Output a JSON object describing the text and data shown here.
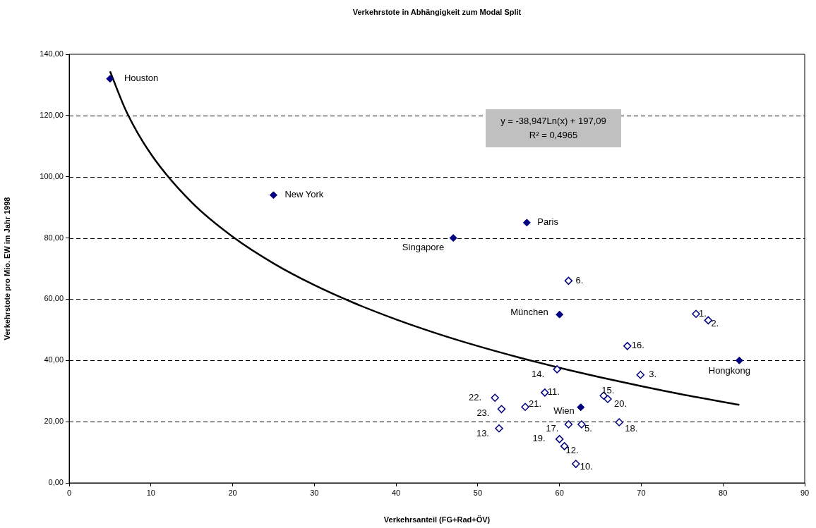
{
  "chart_data": {
    "type": "scatter",
    "title": "Verkehrstote in Abhängigkeit zum Modal Split",
    "xlabel": "Verkehrsanteil (FG+Rad+ÖV)",
    "ylabel": "Verkehrstote pro Mio. EW im Jahr 1998",
    "xlim": [
      0,
      90
    ],
    "xticks": [
      0,
      10,
      20,
      30,
      40,
      50,
      60,
      70,
      80,
      90
    ],
    "ylim": [
      0,
      140
    ],
    "yticks": [
      {
        "value": 0,
        "label": "0,00"
      },
      {
        "value": 20,
        "label": "20,00"
      },
      {
        "value": 40,
        "label": "40,00"
      },
      {
        "value": 60,
        "label": "60,00"
      },
      {
        "value": 80,
        "label": "80,00"
      },
      {
        "value": 100,
        "label": "100,00"
      },
      {
        "value": 120,
        "label": "120,00"
      },
      {
        "value": 140,
        "label": "140,00"
      }
    ],
    "grid": "y",
    "legend": false,
    "marker": "diamond",
    "series": [
      {
        "color": "#000080",
        "x": [
          5,
          25,
          47,
          56,
          60,
          62.6,
          82
        ],
        "values": [
          132,
          94,
          80,
          85,
          55,
          24.7,
          40
        ]
      },
      {
        "color": "#000080",
        "x": [
          76.7,
          78.2,
          69.9,
          62.7,
          61.1,
          62,
          58.2,
          60.6,
          52.6,
          59.7,
          65.4,
          68.3,
          61.1,
          67.3,
          60,
          65.9,
          55.8,
          52.1,
          52.9
        ],
        "values": [
          55.2,
          53.1,
          35.3,
          19.1,
          66,
          6.2,
          29.5,
          12,
          17.8,
          37.1,
          28.5,
          44.7,
          19.1,
          19.8,
          14.3,
          27.4,
          24.8,
          27.8,
          24.1
        ]
      },
      {
        "type": "line",
        "color": "#000000",
        "marker": "none",
        "line_style": "solid",
        "x": [
          5,
          7,
          10,
          15,
          20,
          25,
          30,
          35,
          40,
          45,
          50,
          55,
          60,
          65,
          70,
          75,
          82
        ],
        "values": [
          134.4,
          121.3,
          107.4,
          91.6,
          80.4,
          71.7,
          64.6,
          58.6,
          53.4,
          48.8,
          44.7,
          41.0,
          37.6,
          34.5,
          31.6,
          28.9,
          25.5
        ]
      }
    ],
    "annotations": [
      {
        "text": "Houston",
        "x": 5,
        "y": 132
      },
      {
        "text": "New York",
        "x": 25,
        "y": 94
      },
      {
        "text": "Singapore",
        "x": 47,
        "y": 80
      },
      {
        "text": "Paris",
        "x": 56,
        "y": 85
      },
      {
        "text": "München",
        "x": 60,
        "y": 55
      },
      {
        "text": "Wien",
        "x": 62.6,
        "y": 24.7
      },
      {
        "text": "Hongkong",
        "x": 82,
        "y": 40
      },
      {
        "text": "1.",
        "x": 76.7,
        "y": 55.2
      },
      {
        "text": "2.",
        "x": 78.2,
        "y": 53.1
      },
      {
        "text": "3.",
        "x": 69.9,
        "y": 35.3
      },
      {
        "text": "5.",
        "x": 62.7,
        "y": 19.1
      },
      {
        "text": "6.",
        "x": 61.1,
        "y": 66
      },
      {
        "text": "10.",
        "x": 62,
        "y": 6.2
      },
      {
        "text": "11.",
        "x": 58.2,
        "y": 29.5
      },
      {
        "text": "12.",
        "x": 60.6,
        "y": 12
      },
      {
        "text": "13.",
        "x": 52.6,
        "y": 17.8
      },
      {
        "text": "14.",
        "x": 59.7,
        "y": 37.1
      },
      {
        "text": "15.",
        "x": 65.4,
        "y": 28.5
      },
      {
        "text": "16.",
        "x": 68.3,
        "y": 44.7
      },
      {
        "text": "17.",
        "x": 61.1,
        "y": 19.1
      },
      {
        "text": "18.",
        "x": 67.3,
        "y": 19.8
      },
      {
        "text": "19.",
        "x": 60,
        "y": 14.3
      },
      {
        "text": "20.",
        "x": 65.9,
        "y": 27.4
      },
      {
        "text": "21.",
        "x": 55.8,
        "y": 24.8
      },
      {
        "text": "22.",
        "x": 52.1,
        "y": 27.8
      },
      {
        "text": "23.",
        "x": 52.9,
        "y": 24.1
      },
      "y = -38,947Ln(x) + 197,09",
      "R² = 0,4965"
    ]
  }
}
